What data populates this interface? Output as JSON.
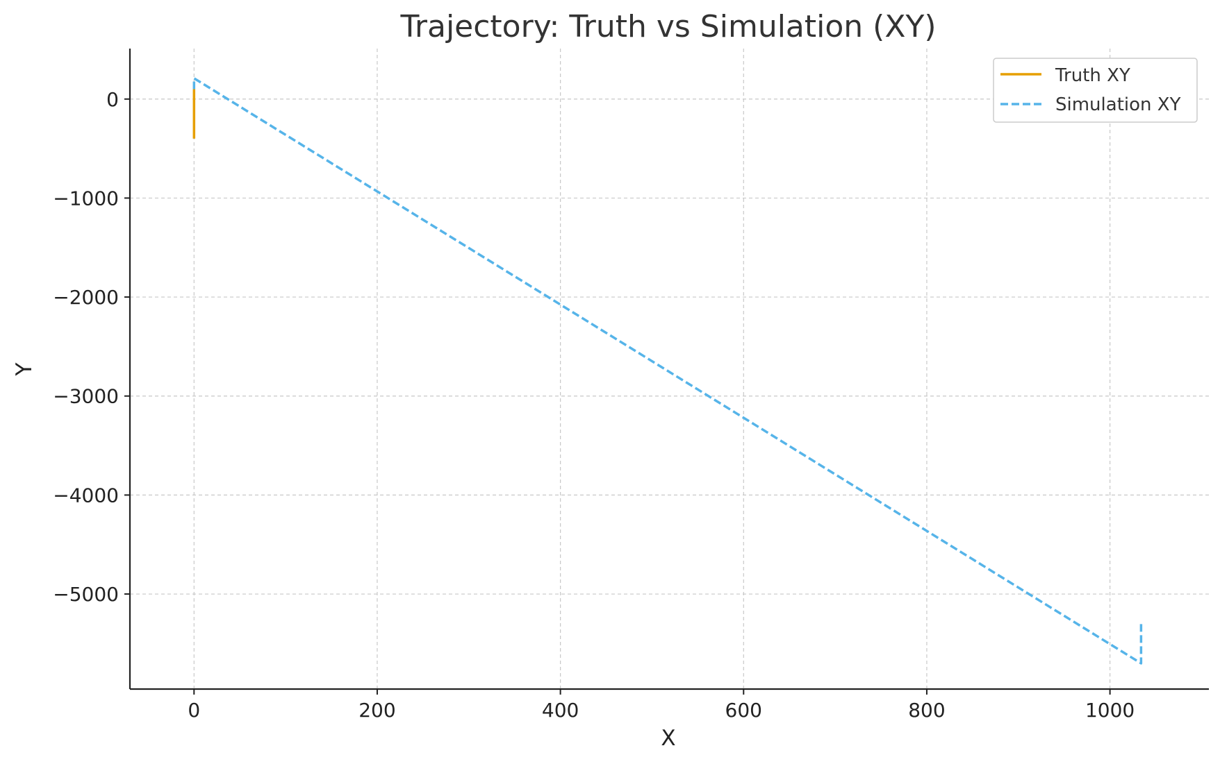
{
  "chart_data": {
    "type": "line",
    "title": "Trajectory: Truth vs Simulation (XY)",
    "xlabel": "X",
    "ylabel": "Y",
    "xlim": [
      -70,
      1108
    ],
    "ylim": [
      -5960,
      510
    ],
    "xticks": [
      0,
      200,
      400,
      600,
      800,
      1000
    ],
    "yticks": [
      0,
      -1000,
      -2000,
      -3000,
      -4000,
      -5000
    ],
    "xtick_labels": [
      "0",
      "200",
      "400",
      "600",
      "800",
      "1000"
    ],
    "ytick_labels": [
      "0",
      "−1000",
      "−2000",
      "−3000",
      "−4000",
      "−5000"
    ],
    "grid": true,
    "legend_position": "top-right",
    "series": [
      {
        "name": "Truth XY",
        "color": "#E69F00",
        "style": "solid",
        "x": [
          0,
          0
        ],
        "y": [
          100,
          -400
        ]
      },
      {
        "name": "Simulation XY",
        "color": "#56B4E9",
        "style": "dashed",
        "x": [
          0,
          0,
          1034,
          1034
        ],
        "y": [
          100,
          210,
          -5700,
          -5300
        ]
      }
    ]
  }
}
